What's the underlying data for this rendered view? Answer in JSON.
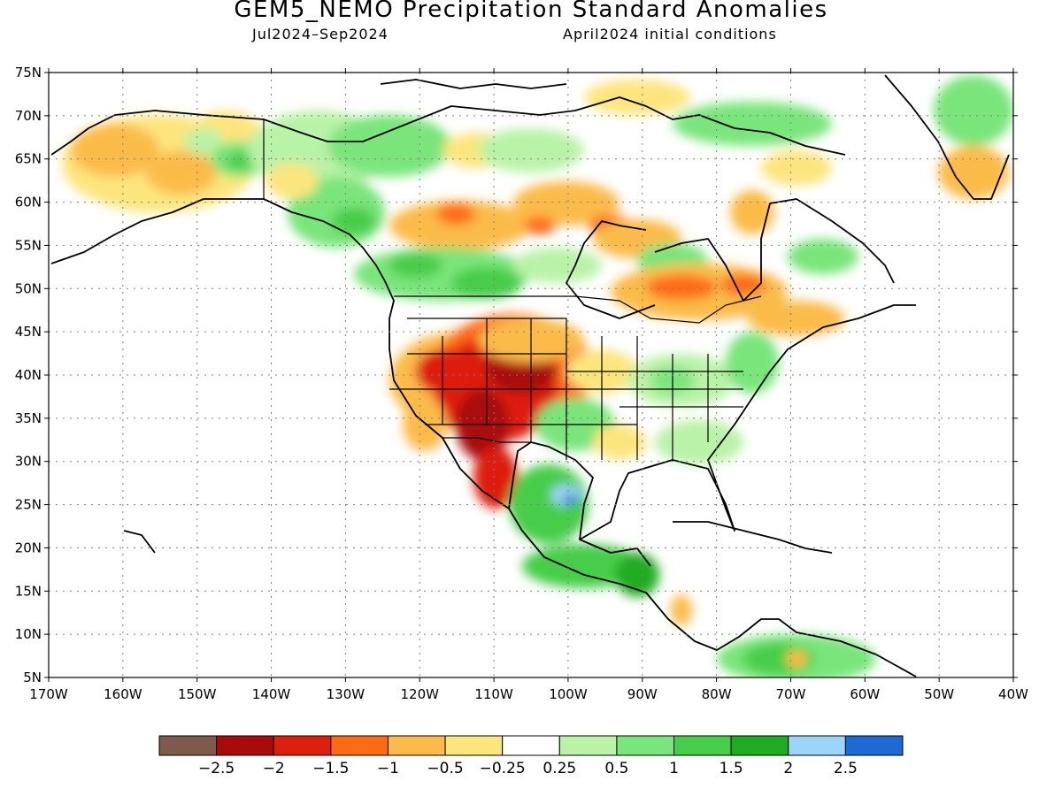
{
  "header": {
    "title": "GEM5_NEMO Precipitation Standard Anomalies",
    "period": "Jul2024–Sep2024",
    "init": "April2024 initial conditions"
  },
  "map": {
    "lat_labels": [
      "75N",
      "70N",
      "65N",
      "60N",
      "55N",
      "50N",
      "45N",
      "40N",
      "35N",
      "30N",
      "25N",
      "20N",
      "15N",
      "10N",
      "5N"
    ],
    "lon_labels": [
      "170W",
      "160W",
      "150W",
      "140W",
      "130W",
      "120W",
      "110W",
      "100W",
      "90W",
      "80W",
      "70W",
      "60W",
      "50W",
      "40W"
    ],
    "extent": {
      "lon_min": -170,
      "lon_max": -40,
      "lat_min": 5,
      "lat_max": 75
    }
  },
  "legend": {
    "colors": [
      "#7d5a4c",
      "#a90a0a",
      "#dd1f0c",
      "#ff6a12",
      "#fbbb4a",
      "#fde57e",
      "#ffffff",
      "#b9f3a7",
      "#79e57a",
      "#46cd4a",
      "#20ac20",
      "#9bd5f7",
      "#1d6ad5"
    ],
    "labels": [
      "−2.5",
      "−2",
      "−1.5",
      "−1",
      "−0.5",
      "−0.25",
      "0.25",
      "0.5",
      "1",
      "1.5",
      "2",
      "2.5"
    ]
  }
}
